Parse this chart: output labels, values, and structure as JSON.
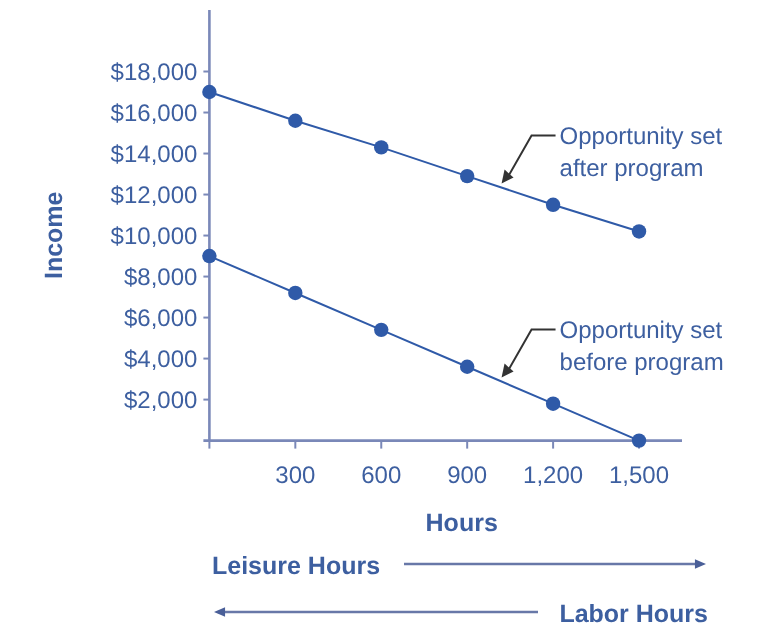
{
  "chart_data": {
    "type": "line",
    "xlabel": "Hours",
    "ylabel": "Income",
    "x": [
      0,
      300,
      600,
      900,
      1200,
      1500
    ],
    "series": [
      {
        "name": "Opportunity set after program",
        "color": "#2f5aa8",
        "values": [
          17000,
          15600,
          14300,
          12900,
          11500,
          10200
        ]
      },
      {
        "name": "Opportunity set before program",
        "color": "#2f5aa8",
        "values": [
          9000,
          7200,
          5400,
          3600,
          1800,
          0
        ]
      }
    ],
    "xlim": [
      0,
      1650
    ],
    "ylim": [
      0,
      21000
    ],
    "xticks": [
      {
        "value": 0,
        "label": null
      },
      300,
      600,
      900,
      {
        "value": 1200,
        "label": "1,200"
      },
      {
        "value": 1500,
        "label": "1,500"
      }
    ],
    "yticks": [
      {
        "value": 2000,
        "label": "$2,000"
      },
      {
        "value": 4000,
        "label": "$4,000"
      },
      {
        "value": 6000,
        "label": "$6,000"
      },
      {
        "value": 8000,
        "label": "$8,000"
      },
      {
        "value": 10000,
        "label": "$10,000"
      },
      {
        "value": 12000,
        "label": "$12,000"
      },
      {
        "value": 14000,
        "label": "$14,000"
      },
      {
        "value": 16000,
        "label": "$16,000"
      },
      {
        "value": 18000,
        "label": "$18,000"
      }
    ],
    "marker": "circle",
    "line_style": "solid",
    "annotations": [
      "Leisure Hours",
      "Labor Hours"
    ]
  }
}
